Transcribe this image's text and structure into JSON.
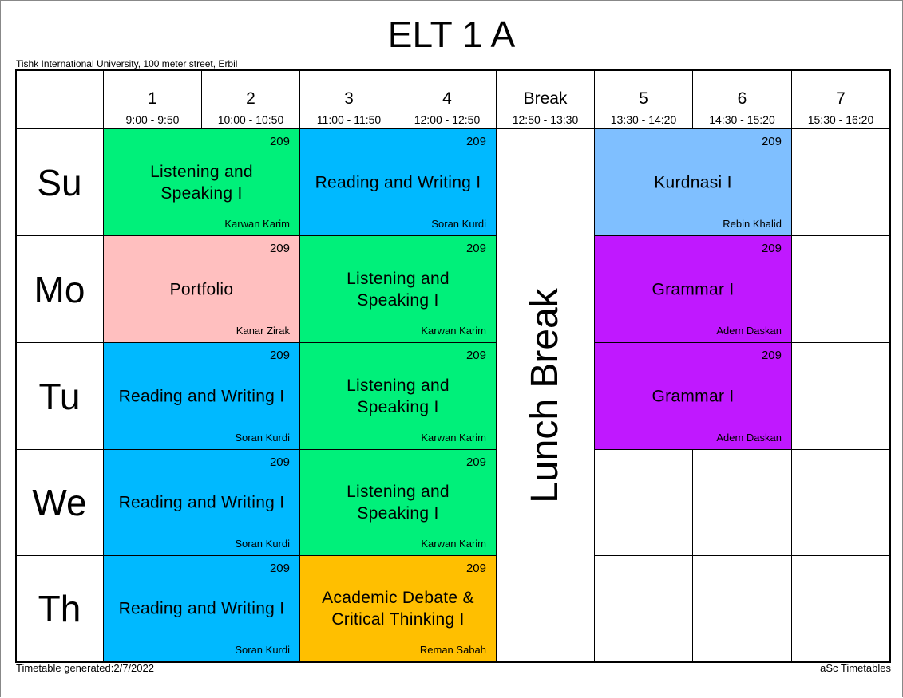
{
  "title": "ELT 1 A",
  "subtitle": "Tishk International University, 100 meter street, Erbil",
  "periods": [
    {
      "num": "1",
      "time": "9:00 - 9:50"
    },
    {
      "num": "2",
      "time": "10:00 - 10:50"
    },
    {
      "num": "3",
      "time": "11:00 - 11:50"
    },
    {
      "num": "4",
      "time": "12:00 - 12:50"
    },
    {
      "num": "Break",
      "time": "12:50 - 13:30"
    },
    {
      "num": "5",
      "time": "13:30 - 14:20"
    },
    {
      "num": "6",
      "time": "14:30 - 15:20"
    },
    {
      "num": "7",
      "time": "15:30 - 16:20"
    }
  ],
  "days": [
    "Su",
    "Mo",
    "Tu",
    "We",
    "Th"
  ],
  "break_label": "Lunch Break",
  "lessons": [
    {
      "subject": "Listening and Speaking I",
      "room": "209",
      "teacher": "Karwan Karim",
      "color": "#00f07a"
    },
    {
      "subject": "Reading and Writing I",
      "room": "209",
      "teacher": "Soran Kurdi",
      "color": "#00b9ff"
    },
    {
      "subject": "Kurdnasi I",
      "room": "209",
      "teacher": "Rebin Khalid",
      "color": "#7fbfff"
    },
    {
      "subject": "Portfolio",
      "room": "209",
      "teacher": "Kanar Zirak",
      "color": "#ffbfbf"
    },
    {
      "subject": "Listening and Speaking I",
      "room": "209",
      "teacher": "Karwan Karim",
      "color": "#00f07a"
    },
    {
      "subject": "Grammar I",
      "room": "209",
      "teacher": "Adem Daskan",
      "color": "#c018ff"
    },
    {
      "subject": "Reading and Writing I",
      "room": "209",
      "teacher": "Soran Kurdi",
      "color": "#00b9ff"
    },
    {
      "subject": "Listening and Speaking I",
      "room": "209",
      "teacher": "Karwan Karim",
      "color": "#00f07a"
    },
    {
      "subject": "Grammar I",
      "room": "209",
      "teacher": "Adem Daskan",
      "color": "#c018ff"
    },
    {
      "subject": "Reading and Writing I",
      "room": "209",
      "teacher": "Soran Kurdi",
      "color": "#00b9ff"
    },
    {
      "subject": "Listening and Speaking I",
      "room": "209",
      "teacher": "Karwan Karim",
      "color": "#00f07a"
    },
    {
      "subject": "Reading and Writing I",
      "room": "209",
      "teacher": "Soran Kurdi",
      "color": "#00b9ff"
    },
    {
      "subject": "Academic Debate & Critical Thinking I",
      "room": "209",
      "teacher": "Reman Sabah",
      "color": "#ffbf00"
    }
  ],
  "footer": {
    "generated": "Timetable generated:2/7/2022",
    "credit": "aSc Timetables"
  }
}
